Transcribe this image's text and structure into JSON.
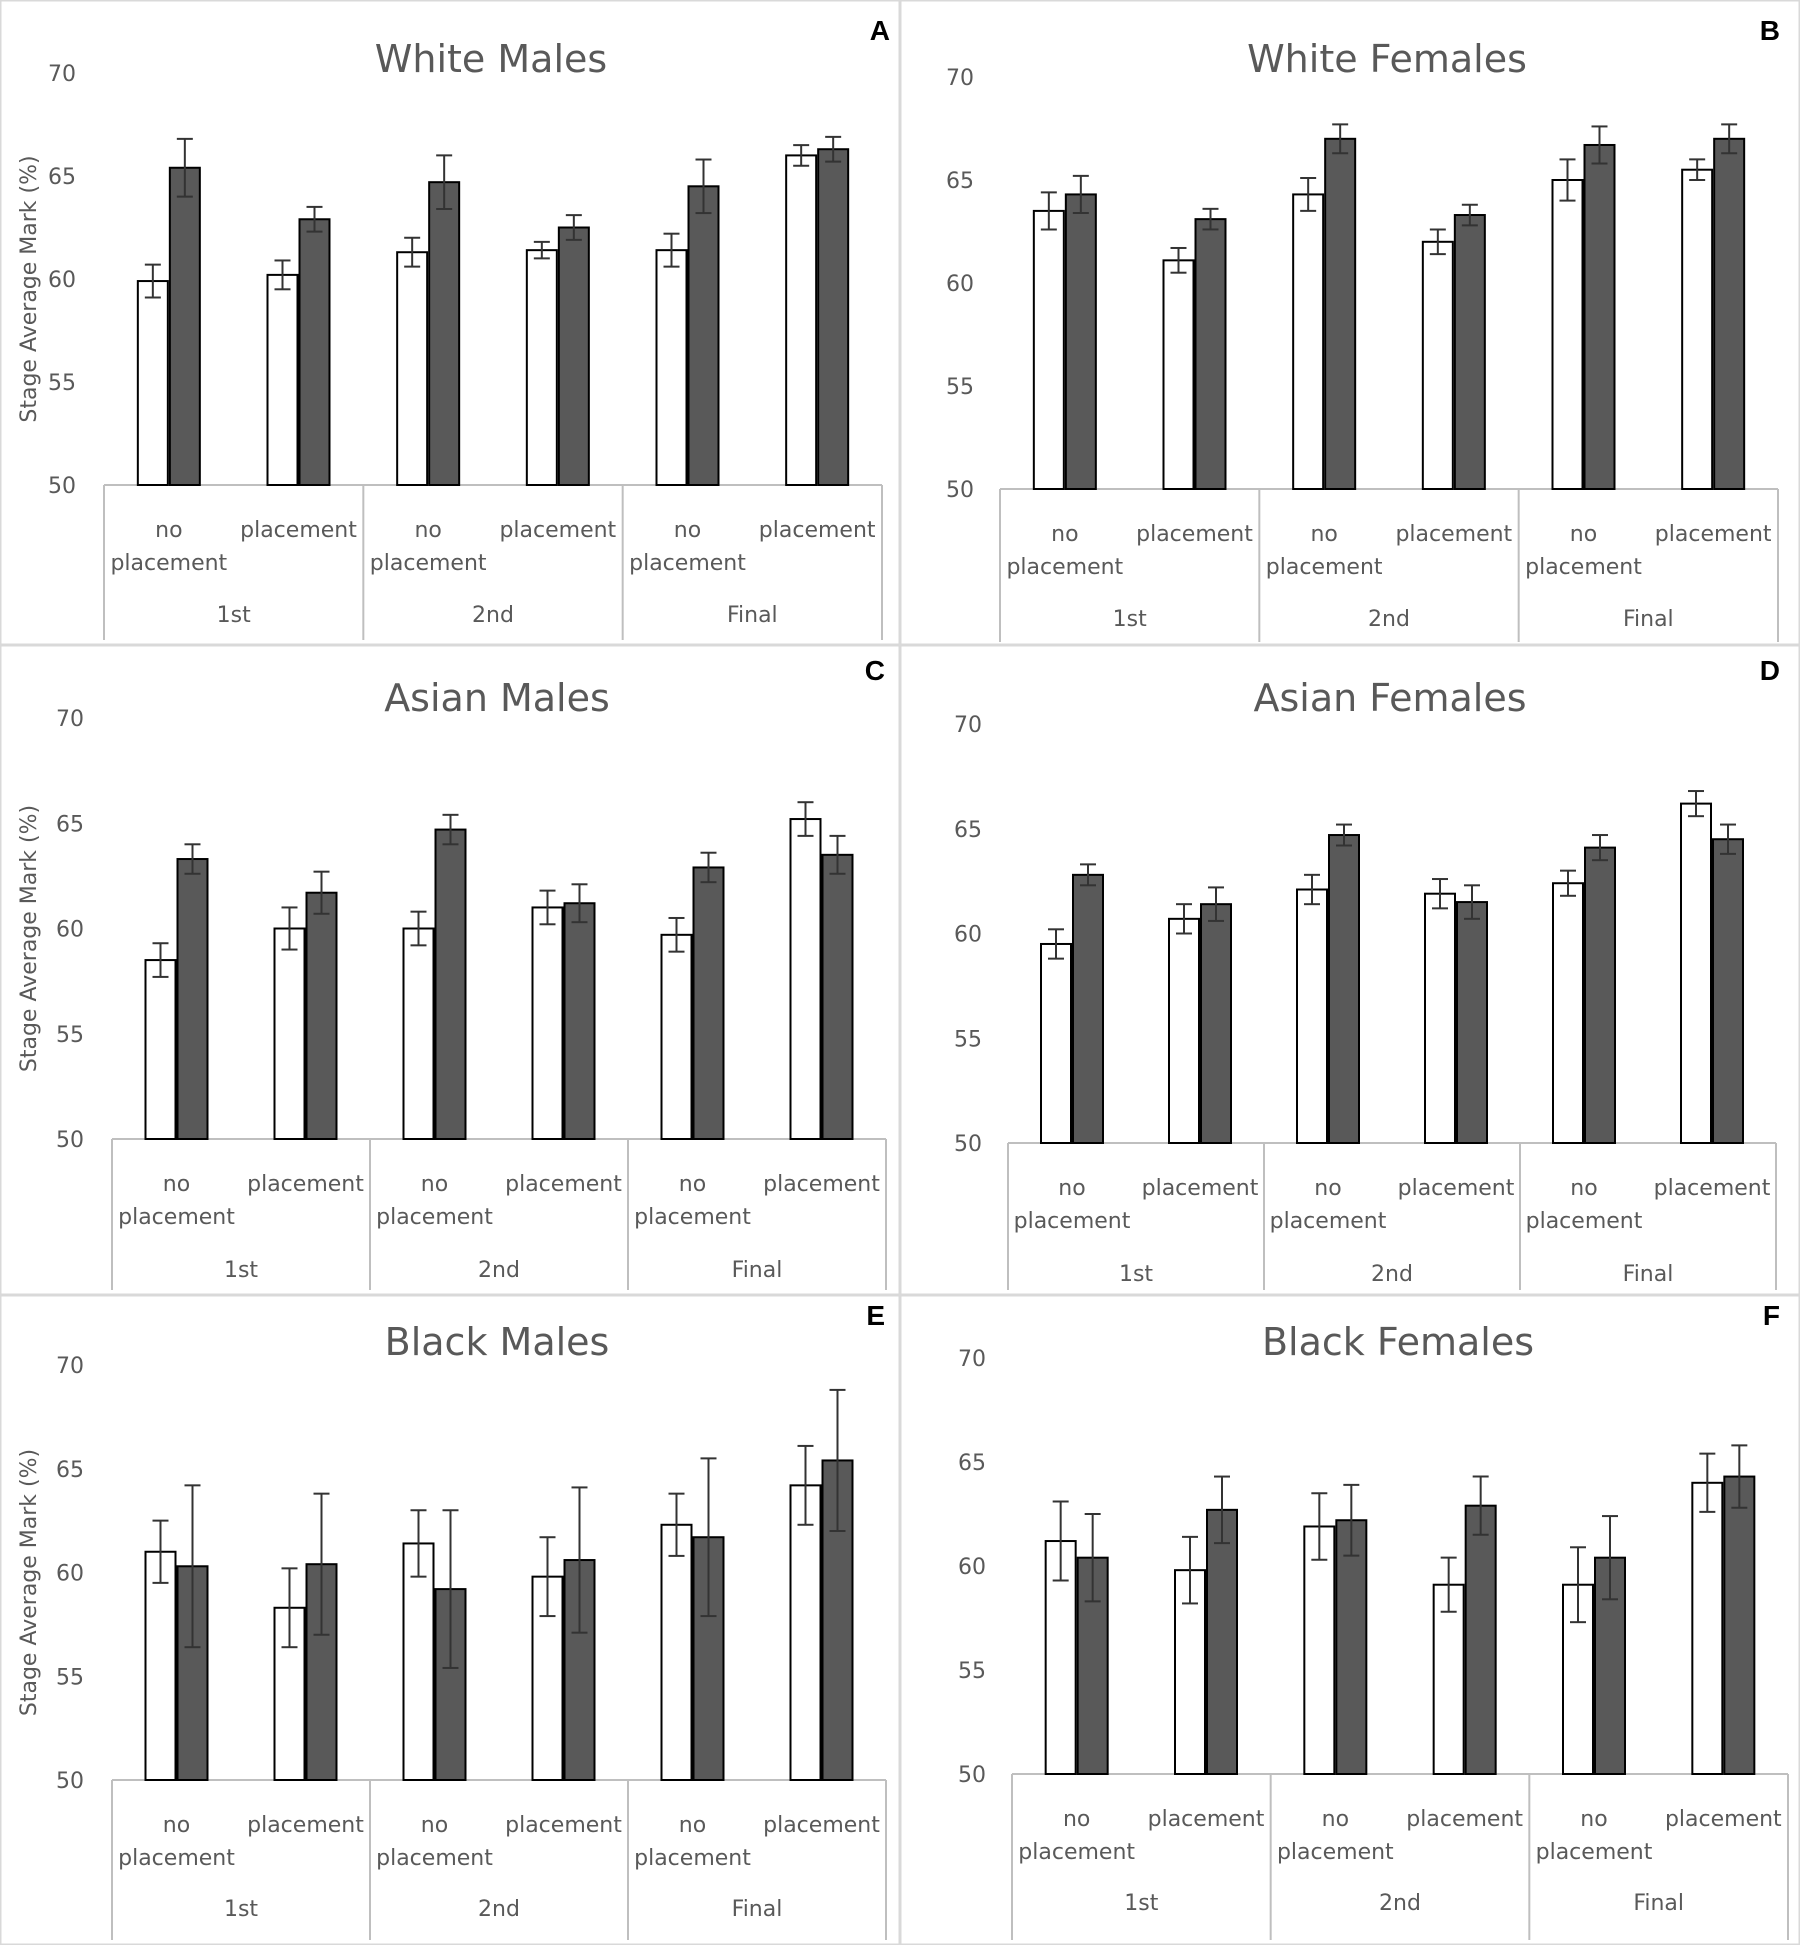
{
  "figure": {
    "colors": {
      "no_placement": "#ffffff",
      "placement": "#595959",
      "border": "#000000",
      "axis": "#bfbfbf",
      "text": "#595959"
    }
  },
  "chart_data": [
    {
      "type": "bar",
      "letter": "A",
      "title": "White Males",
      "ylabel": "Stage Average Mark (%)",
      "ylim": [
        50,
        70
      ],
      "yticks": [
        "50",
        "55",
        "60",
        "65",
        "70"
      ],
      "stages": [
        "1st",
        "2nd",
        "Final"
      ],
      "category_labels": [
        "no placement",
        "placement",
        "no placement",
        "placement",
        "no placement",
        "placement"
      ],
      "groups": [
        {
          "values": [
            59.9,
            65.4
          ],
          "errors": [
            0.8,
            1.4
          ]
        },
        {
          "values": [
            60.2,
            62.9
          ],
          "errors": [
            0.7,
            0.6
          ]
        },
        {
          "values": [
            61.3,
            64.7
          ],
          "errors": [
            0.7,
            1.3
          ]
        },
        {
          "values": [
            61.4,
            62.5
          ],
          "errors": [
            0.4,
            0.6
          ]
        },
        {
          "values": [
            61.4,
            64.5
          ],
          "errors": [
            0.8,
            1.3
          ]
        },
        {
          "values": [
            66.0,
            66.3
          ],
          "errors": [
            0.5,
            0.6
          ]
        }
      ]
    },
    {
      "type": "bar",
      "letter": "B",
      "title": "White Females",
      "ylabel": "",
      "ylim": [
        50,
        70
      ],
      "yticks": [
        "50",
        "55",
        "60",
        "65",
        "70"
      ],
      "stages": [
        "1st",
        "2nd",
        "Final"
      ],
      "category_labels": [
        "no placement",
        "placement",
        "no placement",
        "placement",
        "no placement",
        "placement"
      ],
      "groups": [
        {
          "values": [
            63.5,
            64.3
          ],
          "errors": [
            0.9,
            0.9
          ]
        },
        {
          "values": [
            61.1,
            63.1
          ],
          "errors": [
            0.6,
            0.5
          ]
        },
        {
          "values": [
            64.3,
            67.0
          ],
          "errors": [
            0.8,
            0.7
          ]
        },
        {
          "values": [
            62.0,
            63.3
          ],
          "errors": [
            0.6,
            0.5
          ]
        },
        {
          "values": [
            65.0,
            66.7
          ],
          "errors": [
            1.0,
            0.9
          ]
        },
        {
          "values": [
            65.5,
            67.0
          ],
          "errors": [
            0.5,
            0.7
          ]
        }
      ]
    },
    {
      "type": "bar",
      "letter": "C",
      "title": "Asian Males",
      "ylabel": "Stage Average Mark (%)",
      "ylim": [
        50,
        70
      ],
      "yticks": [
        "50",
        "55",
        "60",
        "65",
        "70"
      ],
      "stages": [
        "1st",
        "2nd",
        "Final"
      ],
      "category_labels": [
        "no placement",
        "placement",
        "no placement",
        "placement",
        "no placement",
        "placement"
      ],
      "groups": [
        {
          "values": [
            58.5,
            63.3
          ],
          "errors": [
            0.8,
            0.7
          ]
        },
        {
          "values": [
            60.0,
            61.7
          ],
          "errors": [
            1.0,
            1.0
          ]
        },
        {
          "values": [
            60.0,
            64.7
          ],
          "errors": [
            0.8,
            0.7
          ]
        },
        {
          "values": [
            61.0,
            61.2
          ],
          "errors": [
            0.8,
            0.9
          ]
        },
        {
          "values": [
            59.7,
            62.9
          ],
          "errors": [
            0.8,
            0.7
          ]
        },
        {
          "values": [
            65.2,
            63.5
          ],
          "errors": [
            0.8,
            0.9
          ]
        }
      ]
    },
    {
      "type": "bar",
      "letter": "D",
      "title": "Asian Females",
      "ylabel": "",
      "ylim": [
        50,
        70
      ],
      "yticks": [
        "50",
        "55",
        "60",
        "65",
        "70"
      ],
      "stages": [
        "1st",
        "2nd",
        "Final"
      ],
      "category_labels": [
        "no placement",
        "placement",
        "no placement",
        "placement",
        "no placement",
        "placement"
      ],
      "groups": [
        {
          "values": [
            59.5,
            62.8
          ],
          "errors": [
            0.7,
            0.5
          ]
        },
        {
          "values": [
            60.7,
            61.4
          ],
          "errors": [
            0.7,
            0.8
          ]
        },
        {
          "values": [
            62.1,
            64.7
          ],
          "errors": [
            0.7,
            0.5
          ]
        },
        {
          "values": [
            61.9,
            61.5
          ],
          "errors": [
            0.7,
            0.8
          ]
        },
        {
          "values": [
            62.4,
            64.1
          ],
          "errors": [
            0.6,
            0.6
          ]
        },
        {
          "values": [
            66.2,
            64.5
          ],
          "errors": [
            0.6,
            0.7
          ]
        }
      ]
    },
    {
      "type": "bar",
      "letter": "E",
      "title": "Black Males",
      "ylabel": "Stage Average Mark (%)",
      "ylim": [
        50,
        70
      ],
      "yticks": [
        "50",
        "55",
        "60",
        "65",
        "70"
      ],
      "stages": [
        "1st",
        "2nd",
        "Final"
      ],
      "category_labels": [
        "no placement",
        "placement",
        "no placement",
        "placement",
        "no placement",
        "placement"
      ],
      "groups": [
        {
          "values": [
            61.0,
            60.3
          ],
          "errors": [
            1.5,
            3.9
          ]
        },
        {
          "values": [
            58.3,
            60.4
          ],
          "errors": [
            1.9,
            3.4
          ]
        },
        {
          "values": [
            61.4,
            59.2
          ],
          "errors": [
            1.6,
            3.8
          ]
        },
        {
          "values": [
            59.8,
            60.6
          ],
          "errors": [
            1.9,
            3.5
          ]
        },
        {
          "values": [
            62.3,
            61.7
          ],
          "errors": [
            1.5,
            3.8
          ]
        },
        {
          "values": [
            64.2,
            65.4
          ],
          "errors": [
            1.9,
            3.4
          ]
        }
      ]
    },
    {
      "type": "bar",
      "letter": "F",
      "title": "Black Females",
      "ylabel": "",
      "ylim": [
        50,
        70
      ],
      "yticks": [
        "50",
        "55",
        "60",
        "65",
        "70"
      ],
      "stages": [
        "1st",
        "2nd",
        "Final"
      ],
      "category_labels": [
        "no placement",
        "placement",
        "no placement",
        "placement",
        "no placement",
        "placement"
      ],
      "groups": [
        {
          "values": [
            61.2,
            60.4
          ],
          "errors": [
            1.9,
            2.1
          ]
        },
        {
          "values": [
            59.8,
            62.7
          ],
          "errors": [
            1.6,
            1.6
          ]
        },
        {
          "values": [
            61.9,
            62.2
          ],
          "errors": [
            1.6,
            1.7
          ]
        },
        {
          "values": [
            59.1,
            62.9
          ],
          "errors": [
            1.3,
            1.4
          ]
        },
        {
          "values": [
            59.1,
            60.4
          ],
          "errors": [
            1.8,
            2.0
          ]
        },
        {
          "values": [
            64.0,
            64.3
          ],
          "errors": [
            1.4,
            1.5
          ]
        }
      ]
    }
  ]
}
